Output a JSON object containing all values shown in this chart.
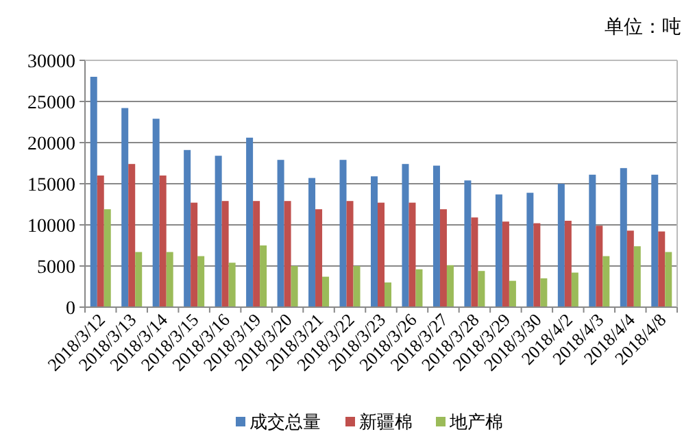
{
  "chart_data": {
    "type": "bar",
    "annotations": [
      "单位：吨"
    ],
    "categories": [
      "2018/3/12",
      "2018/3/13",
      "2018/3/14",
      "2018/3/15",
      "2018/3/16",
      "2018/3/19",
      "2018/3/20",
      "2018/3/21",
      "2018/3/22",
      "2018/3/23",
      "2018/3/26",
      "2018/3/27",
      "2018/3/28",
      "2018/3/29",
      "2018/3/30",
      "2018/4/2",
      "2018/4/3",
      "2018/4/4",
      "2018/4/8"
    ],
    "series": [
      {
        "name": "成交总量",
        "color": "#4f81bd",
        "values": [
          28000,
          24200,
          22900,
          19100,
          18400,
          20600,
          17900,
          15700,
          17900,
          15900,
          17400,
          17200,
          15400,
          13700,
          13900,
          15000,
          16100,
          16900,
          16100
        ]
      },
      {
        "name": "新疆棉",
        "color": "#c0504d",
        "values": [
          16000,
          17400,
          16000,
          12700,
          12900,
          12900,
          12900,
          11900,
          12900,
          12700,
          12700,
          11900,
          10900,
          10400,
          10200,
          10500,
          9900,
          9300,
          9200
        ]
      },
      {
        "name": "地产棉",
        "color": "#9bbb59",
        "values": [
          11900,
          6700,
          6700,
          6200,
          5400,
          7500,
          5000,
          3700,
          5000,
          3000,
          4600,
          5100,
          4400,
          3200,
          3500,
          4200,
          6200,
          7400,
          6700
        ]
      }
    ],
    "ylim": [
      0,
      30000
    ],
    "yticks": [
      0,
      5000,
      10000,
      15000,
      20000,
      25000,
      30000
    ],
    "grid": "y",
    "legend": "bottom"
  }
}
